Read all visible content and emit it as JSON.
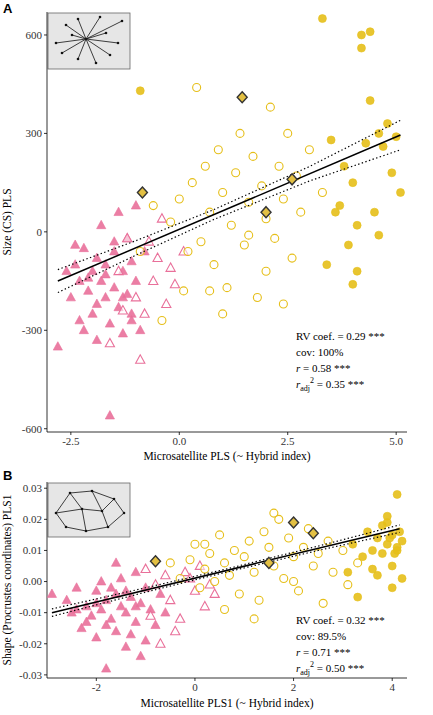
{
  "chart_data": [
    {
      "type": "scatter",
      "title": "A",
      "x_label": "Microsatellite PLS (~ Hybrid index)",
      "y_label": "Size (CS) PLS",
      "xlim": [
        -3.05,
        5.25
      ],
      "ylim": [
        -610,
        670
      ],
      "xticks": [
        -2.5,
        {
          "value": 0,
          "label": "0.0"
        },
        2.5,
        {
          "value": 5,
          "label": "5.0"
        }
      ],
      "yticks": [
        -600,
        -300,
        0,
        300,
        600
      ],
      "grid": false,
      "annotations": [
        {
          "text": "RV coef. = 0.29 ***"
        },
        {
          "text": "cov: 100%"
        },
        {
          "italic": "r",
          "text": " = 0.58 ***"
        },
        {
          "italic": "r",
          "sub": "adj",
          "sup": "2",
          "text": " = 0.35 ***"
        }
      ],
      "series": [
        {
          "marker": "triangle",
          "color": "#e9709a",
          "x": [
            -2.8,
            -2.6,
            -2.5,
            -2.4,
            -2.3,
            -2.2,
            -2.2,
            -2.1,
            -2.0,
            -2.0,
            -1.9,
            -1.9,
            -1.8,
            -1.8,
            -1.7,
            -1.7,
            -1.6,
            -1.6,
            -1.5,
            -1.5,
            -1.4,
            -1.4,
            -1.3,
            -1.3,
            -1.2,
            -1.2,
            -1.1,
            -1.1,
            -1.0,
            -1.0,
            -0.9,
            -0.8,
            -2.4,
            -2.1,
            -1.9,
            -1.7,
            -1.5,
            -1.3,
            -1.1,
            -2.3
          ],
          "values": [
            -350,
            -120,
            -200,
            -100,
            -150,
            -300,
            -50,
            -180,
            -120,
            -250,
            -80,
            -330,
            -150,
            20,
            -200,
            -100,
            -560,
            -280,
            -60,
            -170,
            -230,
            60,
            -120,
            -310,
            -20,
            -190,
            -90,
            -270,
            -150,
            80,
            -300,
            -60,
            -40,
            -140,
            -220,
            -130,
            -30,
            -200,
            -250,
            -270
          ]
        },
        {
          "marker": "triangle-open",
          "color": "#e9709a",
          "x": [
            -1.6,
            -1.3,
            -1.0,
            -0.8,
            -0.6,
            -0.5,
            -0.3,
            -0.2,
            -1.2,
            -0.9,
            -0.7,
            -0.4,
            -1.4,
            -0.1,
            0.1
          ],
          "values": [
            -340,
            -240,
            -200,
            -250,
            -150,
            -80,
            -220,
            -110,
            -20,
            -390,
            -30,
            40,
            -120,
            -160,
            -60
          ]
        },
        {
          "marker": "circle-open",
          "color": "#e6bf1a",
          "x": [
            -0.2,
            0.0,
            0.2,
            0.3,
            0.4,
            0.5,
            0.6,
            0.7,
            0.8,
            0.9,
            1.0,
            1.1,
            1.2,
            1.3,
            1.4,
            1.5,
            1.6,
            1.7,
            1.8,
            1.9,
            2.0,
            2.1,
            2.2,
            2.3,
            2.4,
            2.5,
            2.6,
            2.7,
            2.8,
            3.0,
            -0.9,
            -0.6,
            0.1,
            1.0,
            1.6,
            2.0,
            2.4,
            3.3,
            -0.4,
            0.7
          ],
          "values": [
            30,
            100,
            -60,
            150,
            440,
            -30,
            200,
            60,
            -100,
            250,
            120,
            -170,
            20,
            180,
            300,
            -40,
            90,
            230,
            -200,
            140,
            40,
            380,
            -20,
            200,
            100,
            300,
            -80,
            170,
            60,
            250,
            -60,
            80,
            -180,
            -250,
            -10,
            -120,
            -220,
            120,
            -270,
            -180
          ]
        },
        {
          "marker": "circle",
          "color": "#e6bf1a",
          "x": [
            -0.9,
            3.3,
            3.5,
            3.7,
            3.9,
            4.0,
            4.1,
            4.2,
            4.2,
            4.3,
            4.4,
            4.5,
            4.6,
            4.7,
            4.8,
            4.9,
            5.0,
            5.1,
            4.4,
            3.8,
            4.0,
            4.6,
            4.1,
            3.6,
            3.4
          ],
          "values": [
            430,
            650,
            280,
            80,
            -40,
            150,
            -120,
            600,
            560,
            270,
            400,
            60,
            300,
            260,
            330,
            180,
            290,
            120,
            610,
            200,
            -160,
            -10,
            20,
            60,
            -100
          ]
        },
        {
          "type": "line",
          "line_style": "solid",
          "color": "#000000",
          "x": [
            -2.8,
            5.1
          ],
          "values": [
            -150,
            295
          ]
        },
        {
          "type": "line",
          "line_style": "dotted",
          "color": "#000000",
          "x": [
            -2.8,
            -1.0,
            0.8,
            3.0,
            5.1
          ],
          "values": [
            -115,
            -27,
            68,
            199,
            340
          ]
        },
        {
          "type": "line",
          "line_style": "dotted",
          "color": "#000000",
          "x": [
            -2.8,
            -1.0,
            0.8,
            3.0,
            5.1
          ],
          "values": [
            -185,
            -71,
            38,
            155,
            250
          ]
        },
        {
          "marker": "diamond",
          "color": "#333333",
          "x": [
            -0.85,
            1.45,
            2.0,
            2.6
          ],
          "values": [
            120,
            410,
            60,
            160
          ]
        }
      ]
    },
    {
      "type": "scatter",
      "title": "B",
      "x_label": "Microsatellite PLS1 (~ Hybrid index)",
      "y_label": "Shape (Procrustes coordinates) PLS1",
      "xlim": [
        -3.0,
        4.3
      ],
      "ylim": [
        -0.031,
        0.032
      ],
      "xticks": [
        -2,
        0,
        2,
        4
      ],
      "yticks": [
        -0.03,
        -0.02,
        -0.01,
        {
          "value": 0,
          "label": "0.00"
        },
        0.01,
        0.02,
        0.03
      ],
      "grid": false,
      "annotations": [
        {
          "text": "RV coef. = 0.32 ***"
        },
        {
          "text": "cov: 89.5%"
        },
        {
          "italic": "r",
          "text": " = 0.71 ***"
        },
        {
          "italic": "r",
          "sub": "adj",
          "sup": "2",
          "text": " = 0.50 ***"
        }
      ],
      "series": [
        {
          "marker": "triangle",
          "color": "#e9709a",
          "x": [
            -2.9,
            -2.6,
            -2.4,
            -2.3,
            -2.2,
            -2.1,
            -2.0,
            -2.0,
            -1.9,
            -1.8,
            -1.8,
            -1.7,
            -1.6,
            -1.6,
            -1.5,
            -1.5,
            -1.4,
            -1.4,
            -1.3,
            -1.2,
            -1.2,
            -1.1,
            -1.0,
            -1.0,
            -0.9,
            -0.8,
            -1.9,
            -2.2,
            -1.7,
            -1.3,
            -2.5,
            -1.1,
            -0.7,
            -1.6,
            -2.0,
            -1.4,
            -1.8,
            -0.6,
            -1.2,
            -2.4
          ],
          "values": [
            -0.004,
            -0.006,
            -0.002,
            -0.015,
            -0.008,
            -0.011,
            -0.003,
            -0.018,
            -0.009,
            -0.006,
            -0.028,
            -0.012,
            -0.004,
            -0.016,
            -0.008,
            0.001,
            -0.01,
            -0.021,
            -0.005,
            -0.013,
            0.003,
            -0.007,
            -0.002,
            -0.019,
            -0.009,
            -0.014,
            0.0,
            -0.013,
            -0.002,
            -0.017,
            -0.01,
            -0.024,
            -0.004,
            0.006,
            -0.007,
            -0.003,
            -0.014,
            -0.01,
            -0.008,
            -0.009
          ]
        },
        {
          "marker": "triangle-open",
          "color": "#e9709a",
          "x": [
            -0.8,
            -0.6,
            -0.5,
            -0.3,
            -0.2,
            0.0,
            0.2,
            -0.4,
            -0.1,
            0.3,
            -0.7,
            0.1,
            -1.0,
            0.4,
            -0.9
          ],
          "values": [
            -0.001,
            0.002,
            -0.006,
            -0.012,
            0.003,
            -0.003,
            -0.008,
            -0.016,
            0.001,
            -0.001,
            -0.02,
            0.005,
            0.004,
            -0.004,
            -0.011
          ]
        },
        {
          "marker": "circle-open",
          "color": "#e6bf1a",
          "x": [
            -0.5,
            -0.3,
            -0.1,
            0.0,
            0.1,
            0.2,
            0.3,
            0.4,
            0.5,
            0.6,
            0.7,
            0.8,
            0.9,
            1.0,
            1.1,
            1.2,
            1.3,
            1.4,
            1.5,
            1.6,
            1.7,
            1.8,
            1.9,
            2.0,
            2.1,
            2.2,
            2.3,
            2.4,
            2.5,
            2.6,
            2.7,
            2.8,
            3.0,
            3.1,
            0.6,
            1.2,
            1.6,
            2.0,
            3.3,
            0.2
          ],
          "values": [
            0.006,
            0.001,
            0.007,
            0.012,
            -0.002,
            0.004,
            0.009,
            0.0,
            0.015,
            0.006,
            0.002,
            0.01,
            -0.004,
            0.008,
            0.013,
            0.003,
            -0.006,
            0.016,
            0.011,
            0.005,
            0.02,
            0.001,
            0.014,
            0.008,
            -0.003,
            0.011,
            0.017,
            0.005,
            0.009,
            -0.007,
            0.013,
            0.003,
            0.01,
            -0.001,
            -0.009,
            -0.012,
            0.022,
            0.0,
            0.006,
            0.012
          ]
        },
        {
          "marker": "circle",
          "color": "#e6bf1a",
          "x": [
            3.2,
            3.3,
            3.4,
            3.5,
            3.6,
            3.7,
            3.7,
            3.8,
            3.8,
            3.9,
            3.9,
            4.0,
            4.0,
            4.1,
            4.1,
            4.2,
            4.2,
            4.15,
            4.1,
            3.9,
            3.6,
            4.05,
            3.1,
            4.0,
            3.95
          ],
          "values": [
            0.012,
            -0.005,
            0.008,
            0.016,
            0.01,
            0.002,
            0.014,
            0.018,
            0.009,
            0.012,
            0.021,
            0.015,
            0.005,
            0.028,
            0.01,
            0.013,
            0.001,
            0.016,
            0.011,
            0.019,
            0.004,
            0.009,
            0.003,
            -0.002,
            0.014
          ]
        },
        {
          "type": "line",
          "line_style": "solid",
          "color": "#000000",
          "x": [
            -2.9,
            4.15
          ],
          "values": [
            -0.01,
            0.017
          ]
        },
        {
          "type": "line",
          "line_style": "dotted",
          "color": "#000000",
          "x": [
            -2.9,
            -1.0,
            0.6,
            2.5,
            4.15
          ],
          "values": [
            -0.0088,
            -0.002,
            0.0039,
            0.0114,
            0.0182
          ]
        },
        {
          "type": "line",
          "line_style": "dotted",
          "color": "#000000",
          "x": [
            -2.9,
            -1.0,
            0.6,
            2.5,
            4.15
          ],
          "values": [
            -0.0112,
            -0.0034,
            0.0029,
            0.01,
            0.0158
          ]
        },
        {
          "marker": "diamond",
          "color": "#333333",
          "x": [
            -0.8,
            1.5,
            2.0,
            2.4
          ],
          "values": [
            0.0065,
            0.006,
            0.019,
            0.0155
          ]
        }
      ]
    }
  ]
}
